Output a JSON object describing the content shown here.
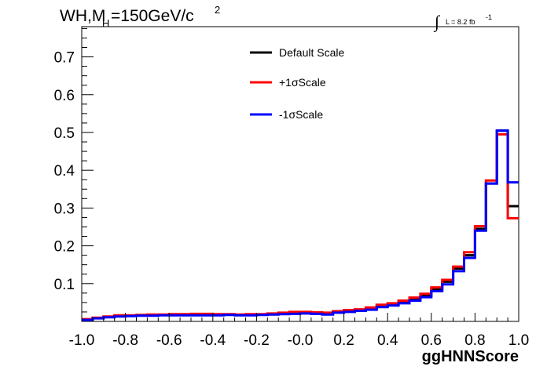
{
  "chart_data": {
    "type": "line",
    "title_parts": {
      "main": "WH,M",
      "subscript": "H",
      "mid": "=150GeV/c",
      "superscript": "2"
    },
    "luminosity": {
      "integral_sign": "∫",
      "text": "L = 8.2 fb",
      "superscript": "-1"
    },
    "xlabel": "ggHNNScore",
    "ylabel": "",
    "xlim": [
      -1.0,
      1.0
    ],
    "ylim": [
      0.0,
      0.78
    ],
    "x_ticks": [
      "-1.0",
      "-0.8",
      "-0.6",
      "-0.4",
      "-0.2",
      "-0.0",
      "0.2",
      "0.4",
      "0.6",
      "0.8",
      "1.0"
    ],
    "x_tick_values": [
      -1.0,
      -0.8,
      -0.6,
      -0.4,
      -0.2,
      0.0,
      0.2,
      0.4,
      0.6,
      0.8,
      1.0
    ],
    "y_ticks": [
      "0.1",
      "0.2",
      "0.3",
      "0.4",
      "0.5",
      "0.6",
      "0.7"
    ],
    "y_tick_values": [
      0.1,
      0.2,
      0.3,
      0.4,
      0.5,
      0.6,
      0.7
    ],
    "bin_edges": [
      -1.0,
      -0.95,
      -0.9,
      -0.85,
      -0.8,
      -0.75,
      -0.7,
      -0.65,
      -0.6,
      -0.55,
      -0.5,
      -0.45,
      -0.4,
      -0.35,
      -0.3,
      -0.25,
      -0.2,
      -0.15,
      -0.1,
      -0.05,
      0.0,
      0.05,
      0.1,
      0.15,
      0.2,
      0.25,
      0.3,
      0.35,
      0.4,
      0.45,
      0.5,
      0.55,
      0.6,
      0.65,
      0.7,
      0.75,
      0.8,
      0.85,
      0.9,
      0.95,
      1.0
    ],
    "series": [
      {
        "name": "Default Scale",
        "color": "#000000",
        "values": [
          0.005,
          0.009,
          0.012,
          0.014,
          0.015,
          0.016,
          0.016,
          0.017,
          0.017,
          0.018,
          0.018,
          0.018,
          0.018,
          0.018,
          0.017,
          0.018,
          0.018,
          0.019,
          0.021,
          0.022,
          0.023,
          0.022,
          0.02,
          0.025,
          0.027,
          0.03,
          0.034,
          0.04,
          0.045,
          0.052,
          0.06,
          0.068,
          0.085,
          0.105,
          0.14,
          0.175,
          0.245,
          0.365,
          0.505,
          0.305
        ]
      },
      {
        "name": "+1σScale",
        "color": "#ff0000",
        "values": [
          0.006,
          0.01,
          0.013,
          0.016,
          0.016,
          0.017,
          0.018,
          0.018,
          0.019,
          0.019,
          0.02,
          0.02,
          0.019,
          0.019,
          0.018,
          0.019,
          0.019,
          0.021,
          0.023,
          0.025,
          0.025,
          0.024,
          0.023,
          0.027,
          0.03,
          0.032,
          0.037,
          0.044,
          0.048,
          0.055,
          0.063,
          0.073,
          0.09,
          0.11,
          0.145,
          0.183,
          0.252,
          0.373,
          0.495,
          0.273
        ]
      },
      {
        "name": "-1σScale",
        "color": "#0000ff",
        "values": [
          0.004,
          0.008,
          0.011,
          0.013,
          0.014,
          0.015,
          0.015,
          0.016,
          0.016,
          0.016,
          0.016,
          0.016,
          0.016,
          0.017,
          0.016,
          0.016,
          0.017,
          0.018,
          0.019,
          0.02,
          0.021,
          0.02,
          0.018,
          0.023,
          0.025,
          0.028,
          0.031,
          0.038,
          0.042,
          0.048,
          0.055,
          0.064,
          0.08,
          0.098,
          0.133,
          0.168,
          0.24,
          0.365,
          0.505,
          0.368
        ]
      }
    ],
    "legend": {
      "placement": "top-center",
      "entries": [
        "Default Scale",
        "+1σScale",
        "-1σScale"
      ]
    },
    "grid": false
  }
}
